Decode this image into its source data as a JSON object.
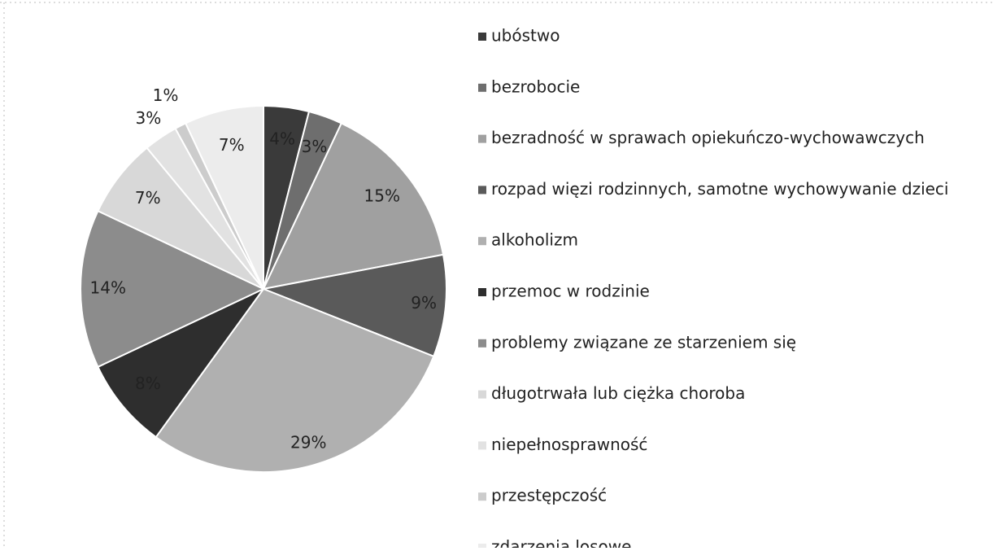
{
  "chart_data": {
    "type": "pie",
    "categories": [
      "ubóstwo",
      "bezrobocie",
      "bezradność w sprawach opiekuńczo-wychowawczych",
      "rozpad więzi rodzinnych, samotne wychowywanie dzieci",
      "alkoholizm",
      "przemoc w rodzinie",
      "problemy związane ze starzeniem się",
      "długotrwała lub ciężka choroba",
      "niepełnosprawność",
      "przestępczość",
      "zdarzenia losowe"
    ],
    "values": [
      4,
      3,
      15,
      9,
      29,
      8,
      14,
      7,
      3,
      1,
      7
    ],
    "value_labels": [
      "4%",
      "3%",
      "15%",
      "9%",
      "29%",
      "8%",
      "14%",
      "7%",
      "3%",
      "1%",
      "7%"
    ],
    "colors": [
      "#3a3a3a",
      "#6e6e6e",
      "#a0a0a0",
      "#5a5a5a",
      "#b0b0b0",
      "#2e2e2e",
      "#8c8c8c",
      "#d8d8d8",
      "#e2e2e2",
      "#cccccc",
      "#ececec"
    ],
    "legend": "right"
  }
}
